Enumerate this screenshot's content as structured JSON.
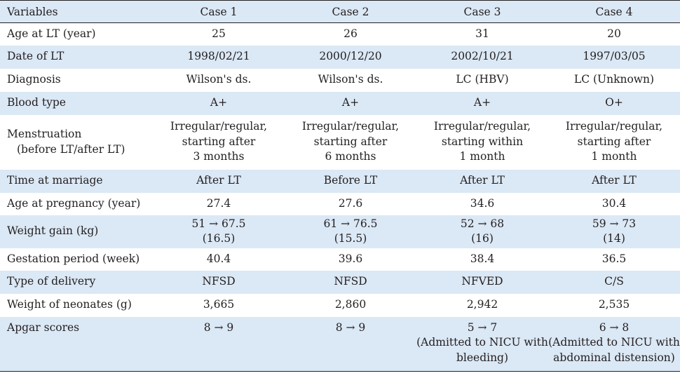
{
  "table": {
    "headers": [
      "Variables",
      "Case 1",
      "Case 2",
      "Case 3",
      "Case 4"
    ],
    "rows": [
      {
        "label": [
          "Age at LT (year)"
        ],
        "cells": [
          [
            "25"
          ],
          [
            "26"
          ],
          [
            "31"
          ],
          [
            "20"
          ]
        ]
      },
      {
        "label": [
          "Date of LT"
        ],
        "cells": [
          [
            "1998/02/21"
          ],
          [
            "2000/12/20"
          ],
          [
            "2002/10/21"
          ],
          [
            "1997/03/05"
          ]
        ]
      },
      {
        "label": [
          "Diagnosis"
        ],
        "cells": [
          [
            "Wilson's ds."
          ],
          [
            "Wilson's ds."
          ],
          [
            "LC (HBV)"
          ],
          [
            "LC (Unknown)"
          ]
        ]
      },
      {
        "label": [
          "Blood type"
        ],
        "cells": [
          [
            "A+"
          ],
          [
            "A+"
          ],
          [
            "A+"
          ],
          [
            "O+"
          ]
        ]
      },
      {
        "label": [
          "Menstruation",
          "(before LT/after LT)"
        ],
        "cells": [
          [
            "Irregular/regular,",
            "starting after",
            "3 months"
          ],
          [
            "Irregular/regular,",
            "starting after",
            "6 months"
          ],
          [
            "Irregular/regular,",
            "starting within",
            "1 month"
          ],
          [
            "Irregular/regular,",
            "starting after",
            "1 month"
          ]
        ]
      },
      {
        "label": [
          "Time at marriage"
        ],
        "cells": [
          [
            "After LT"
          ],
          [
            "Before LT"
          ],
          [
            "After LT"
          ],
          [
            "After LT"
          ]
        ]
      },
      {
        "label": [
          "Age at pregnancy (year)"
        ],
        "cells": [
          [
            "27.4"
          ],
          [
            "27.6"
          ],
          [
            "34.6"
          ],
          [
            "30.4"
          ]
        ]
      },
      {
        "label": [
          "Weight gain (kg)"
        ],
        "cells": [
          [
            "51 → 67.5",
            "(16.5)"
          ],
          [
            "61 → 76.5",
            "(15.5)"
          ],
          [
            "52 → 68",
            "(16)"
          ],
          [
            "59 → 73",
            "(14)"
          ]
        ]
      },
      {
        "label": [
          "Gestation period (week)"
        ],
        "cells": [
          [
            "40.4"
          ],
          [
            "39.6"
          ],
          [
            "38.4"
          ],
          [
            "36.5"
          ]
        ]
      },
      {
        "label": [
          "Type of delivery"
        ],
        "cells": [
          [
            "NFSD"
          ],
          [
            "NFSD"
          ],
          [
            "NFVED"
          ],
          [
            "C/S"
          ]
        ]
      },
      {
        "label": [
          "Weight of neonates (g)"
        ],
        "cells": [
          [
            "3,665"
          ],
          [
            "2,860"
          ],
          [
            "2,942"
          ],
          [
            "2,535"
          ]
        ]
      },
      {
        "label": [
          "Apgar scores"
        ],
        "cells": [
          [
            "8 → 9"
          ],
          [
            "8 → 9"
          ],
          [
            "5 → 7",
            "(Admitted to NICU with",
            "bleeding)"
          ],
          [
            "6 → 8",
            "(Admitted to NICU with",
            "abdominal distension)"
          ]
        ]
      }
    ]
  }
}
